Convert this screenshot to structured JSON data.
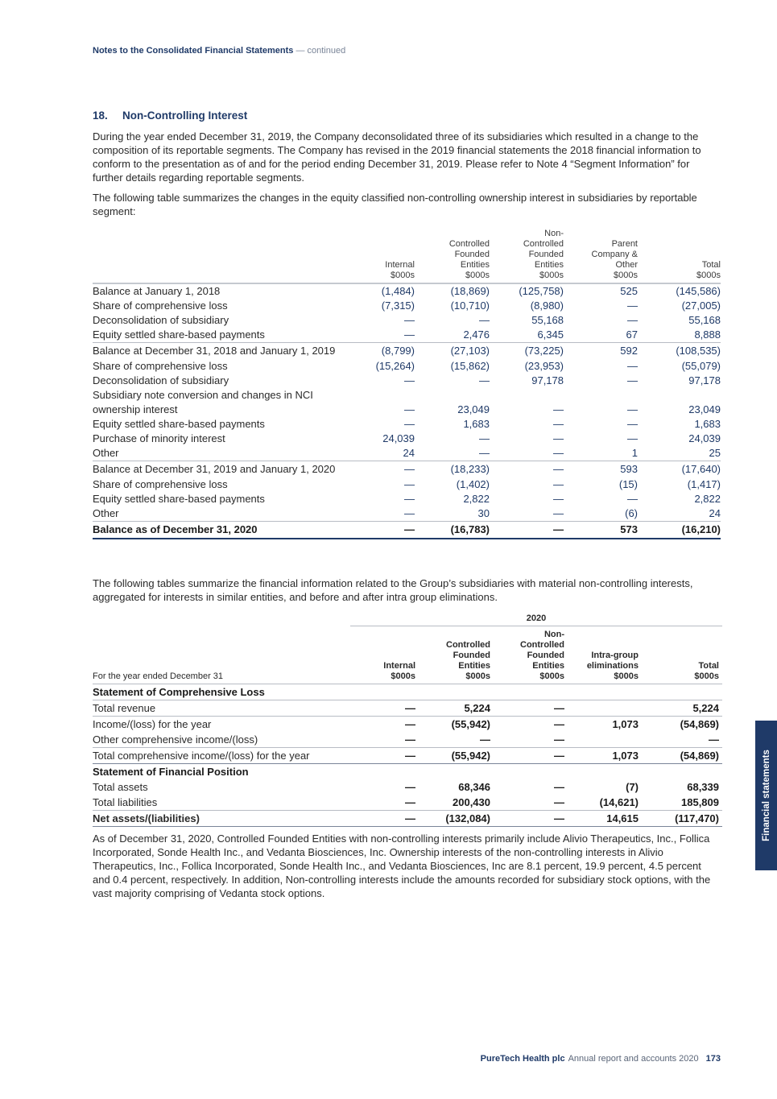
{
  "header": {
    "title": "Notes to the Consolidated Financial Statements",
    "suffix": "— continued"
  },
  "section": {
    "number": "18.",
    "title": "Non-Controlling Interest"
  },
  "paragraphs": {
    "p1": "During the year ended December 31, 2019, the Company deconsolidated three of its subsidiaries which resulted in a change to the composition of its reportable segments. The Company has revised in the 2019 financial statements the 2018 financial information to conform to the presentation as of and for the period ending December 31, 2019. Please refer to Note 4 “Segment Information” for further details regarding reportable segments.",
    "p2": "The following table summarizes the changes in the equity classified non-controlling ownership interest in subsidiaries by reportable segment:",
    "p3": "The following tables summarize the financial information related to the Group’s subsidiaries with material non-controlling interests, aggregated for interests in similar entities, and before and after intra group eliminations.",
    "p4": "As of December 31, 2020, Controlled Founded Entities with non-controlling interests primarily include Alivio Therapeutics, Inc., Follica Incorporated, Sonde Health Inc., and Vedanta Biosciences, Inc. Ownership interests of the non-controlling interests in Alivio Therapeutics, Inc., Follica Incorporated, Sonde Health Inc., and Vedanta Biosciences, Inc are 8.1 percent, 19.9 percent, 4.5 percent and 0.4 percent, respectively. In addition, Non-controlling interests include the amounts recorded for subsidiary stock options, with the vast majority comprising of Vedanta stock options."
  },
  "table1": {
    "columns": [
      [
        "Internal",
        "$000s"
      ],
      [
        "Controlled",
        "Founded",
        "Entities",
        "$000s"
      ],
      [
        "Non-",
        "Controlled",
        "Founded",
        "Entities",
        "$000s"
      ],
      [
        "Parent",
        "Company &",
        "Other",
        "$000s"
      ],
      [
        "Total",
        "$000s"
      ]
    ],
    "rows": [
      {
        "label": "Balance at January 1, 2018",
        "values": [
          "(1,484)",
          "(18,869)",
          "(125,758)",
          "525",
          "(145,586)"
        ]
      },
      {
        "label": "Share of comprehensive loss",
        "values": [
          "(7,315)",
          "(10,710)",
          "(8,980)",
          "—",
          "(27,005)"
        ]
      },
      {
        "label": "Deconsolidation of subsidiary",
        "values": [
          "—",
          "—",
          "55,168",
          "—",
          "55,168"
        ]
      },
      {
        "label": "Equity settled share-based payments",
        "values": [
          "—",
          "2,476",
          "6,345",
          "67",
          "8,888"
        ],
        "style": "sep"
      },
      {
        "label": "Balance at December 31, 2018 and January 1, 2019",
        "values": [
          "(8,799)",
          "(27,103)",
          "(73,225)",
          "592",
          "(108,535)"
        ],
        "style": "gap"
      },
      {
        "label": "Share of comprehensive loss",
        "values": [
          "(15,264)",
          "(15,862)",
          "(23,953)",
          "—",
          "(55,079)"
        ]
      },
      {
        "label": "Deconsolidation of subsidiary",
        "values": [
          "—",
          "—",
          "97,178",
          "—",
          "97,178"
        ]
      },
      {
        "label": "Subsidiary note conversion and changes in NCI ownership interest",
        "values": [
          "—",
          "23,049",
          "—",
          "—",
          "23,049"
        ],
        "style": "multi"
      },
      {
        "label": "Equity settled share-based payments",
        "values": [
          "—",
          "1,683",
          "—",
          "—",
          "1,683"
        ]
      },
      {
        "label": "Purchase of minority interest",
        "values": [
          "24,039",
          "—",
          "—",
          "—",
          "24,039"
        ]
      },
      {
        "label": "Other",
        "values": [
          "24",
          "—",
          "—",
          "1",
          "25"
        ],
        "style": "sep"
      },
      {
        "label": "Balance at December 31, 2019 and January 1, 2020",
        "values": [
          "—",
          "(18,233)",
          "—",
          "593",
          "(17,640)"
        ],
        "style": "gap"
      },
      {
        "label": "Share of comprehensive loss",
        "values": [
          "—",
          "(1,402)",
          "—",
          "(15)",
          "(1,417)"
        ]
      },
      {
        "label": "Equity settled share-based payments",
        "values": [
          "—",
          "2,822",
          "—",
          "—",
          "2,822"
        ]
      },
      {
        "label": "Other",
        "values": [
          "—",
          "30",
          "—",
          "(6)",
          "24"
        ],
        "style": "sep"
      },
      {
        "label": "Balance as of December 31, 2020",
        "values": [
          "—",
          "(16,783)",
          "—",
          "573",
          "(16,210)"
        ],
        "style": "bold"
      }
    ]
  },
  "table2": {
    "year": "2020",
    "row_header": "For the year ended December 31",
    "columns": [
      [
        "Internal",
        "$000s"
      ],
      [
        "Controlled",
        "Founded",
        "Entities",
        "$000s"
      ],
      [
        "Non-",
        "Controlled",
        "Founded",
        "Entities",
        "$000s"
      ],
      [
        "Intra-group",
        "eliminations",
        "$000s"
      ],
      [
        "Total",
        "$000s"
      ]
    ],
    "rows": [
      {
        "label": "Statement of Comprehensive Loss",
        "values": [
          "",
          "",
          "",
          "",
          ""
        ],
        "style": "section"
      },
      {
        "label": "Total revenue",
        "values": [
          "—",
          "5,224",
          "—",
          "",
          "5,224"
        ],
        "style": "topline"
      },
      {
        "label": "Income/(loss) for the year",
        "values": [
          "—",
          "(55,942)",
          "—",
          "1,073",
          "(54,869)"
        ],
        "style": "topline"
      },
      {
        "label": "Other comprehensive income/(loss)",
        "values": [
          "—",
          "—",
          "—",
          "",
          "—"
        ]
      },
      {
        "label": "Total comprehensive income/(loss) for the year",
        "values": [
          "—",
          "(55,942)",
          "—",
          "1,073",
          "(54,869)"
        ],
        "style": "topline bottomline"
      },
      {
        "label": "Statement of Financial Position",
        "values": [
          "",
          "",
          "",
          "",
          ""
        ],
        "style": "section"
      },
      {
        "label": "Total assets",
        "values": [
          "—",
          "68,346",
          "—",
          "(7)",
          "68,339"
        ]
      },
      {
        "label": "Total liabilities",
        "values": [
          "—",
          "200,430",
          "—",
          "(14,621)",
          "185,809"
        ]
      },
      {
        "label": "Net assets/(liabilities)",
        "values": [
          "—",
          "(132,084)",
          "—",
          "14,615",
          "(117,470)"
        ],
        "style": "topline bottomline boldrow"
      }
    ]
  },
  "side_tab": "Financial statements",
  "footer": {
    "company": "PureTech Health plc",
    "publication": "Annual report and accounts 2020",
    "page": "173"
  },
  "colors": {
    "brand_navy": "#1f3a68"
  }
}
